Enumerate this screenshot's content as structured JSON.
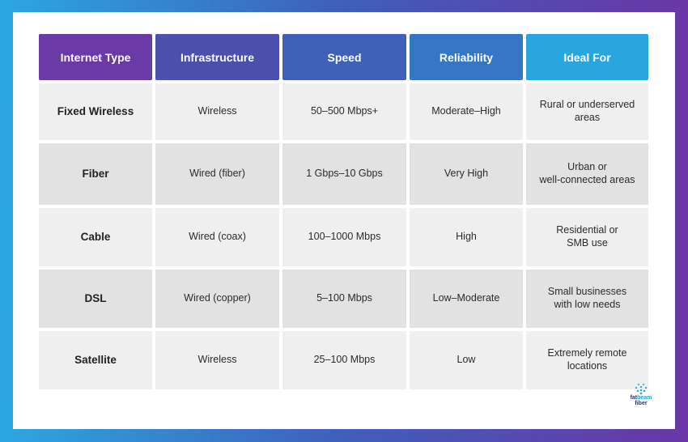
{
  "header": {
    "columns": [
      {
        "label": "Internet Type",
        "color": "#6a3aa6"
      },
      {
        "label": "Infrastructure",
        "color": "#4d4fae"
      },
      {
        "label": "Speed",
        "color": "#3f62b8"
      },
      {
        "label": "Reliability",
        "color": "#3577c6"
      },
      {
        "label": "Ideal For",
        "color": "#2aa6df"
      }
    ]
  },
  "rows": [
    {
      "type": "Fixed Wireless",
      "infrastructure": "Wireless",
      "speed": "50–500 Mbps+",
      "reliability": "Moderate–High",
      "ideal_for": "Rural or underserved\nareas"
    },
    {
      "type": "Fiber",
      "infrastructure": "Wired (fiber)",
      "speed": "1 Gbps–10 Gbps",
      "reliability": "Very High",
      "ideal_for": "Urban or\nwell-connected areas"
    },
    {
      "type": "Cable",
      "infrastructure": "Wired (coax)",
      "speed": "100–1000 Mbps",
      "reliability": "High",
      "ideal_for": "Residential or\nSMB use"
    },
    {
      "type": "DSL",
      "infrastructure": "Wired (copper)",
      "speed": "5–100 Mbps",
      "reliability": "Low–Moderate",
      "ideal_for": "Small businesses\nwith low needs"
    },
    {
      "type": "Satellite",
      "infrastructure": "Wireless",
      "speed": "25–100 Mbps",
      "reliability": "Low",
      "ideal_for": "Extremely remote\nlocations"
    }
  ],
  "logo": {
    "text_part1": "fat",
    "text_part2": "beam",
    "text_part3": "fiber",
    "icon": "wifi-signal-icon"
  },
  "colors": {
    "background_left": "#2ca7e1",
    "background_right": "#6a36a7",
    "cell_light": "#efefef",
    "cell_dark": "#e2e2e2"
  }
}
